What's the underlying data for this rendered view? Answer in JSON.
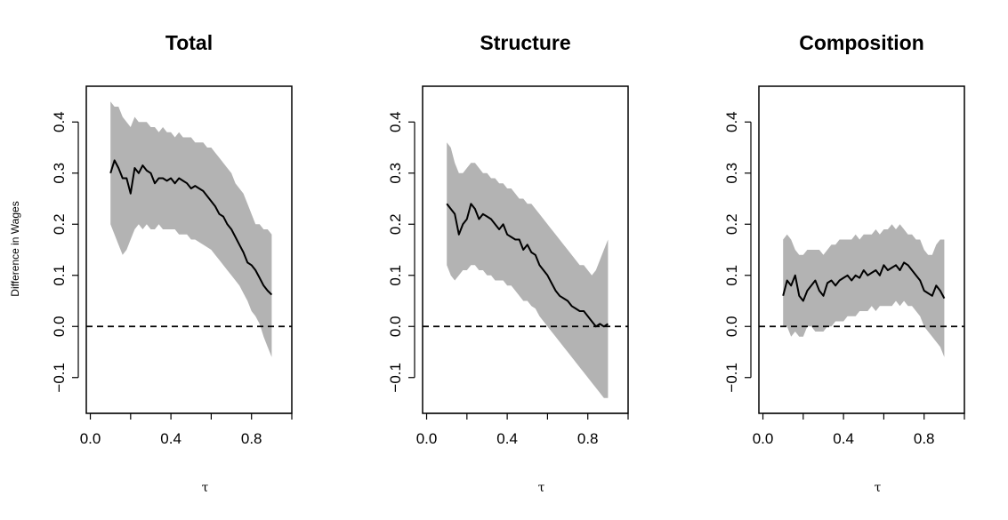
{
  "figure": {
    "ylabel": "Difference in Wages",
    "xlabel": "τ"
  },
  "chart_data": [
    {
      "type": "line",
      "title": "Total",
      "xlabel": "τ",
      "ylabel": "Difference in Wages",
      "xlim": [
        -0.02,
        1.0
      ],
      "ylim": [
        -0.17,
        0.47
      ],
      "xticks": [
        0.0,
        0.2,
        0.4,
        0.6,
        0.8,
        1.0
      ],
      "xtick_labels": [
        "0.0",
        "",
        "0.4",
        "",
        "0.8",
        ""
      ],
      "yticks": [
        -0.1,
        0.0,
        0.1,
        0.2,
        0.3,
        0.4
      ],
      "ytick_labels": [
        "−0.1",
        "0.0",
        "0.1",
        "0.2",
        "0.3",
        "0.4"
      ],
      "reference_line": 0.0,
      "band_color": "#b3b3b3",
      "line_color": "#000000",
      "series": [
        {
          "x": [
            0.1,
            0.12,
            0.14,
            0.16,
            0.18,
            0.2,
            0.22,
            0.24,
            0.26,
            0.28,
            0.3,
            0.32,
            0.34,
            0.36,
            0.38,
            0.4,
            0.42,
            0.44,
            0.46,
            0.48,
            0.5,
            0.52,
            0.54,
            0.56,
            0.58,
            0.6,
            0.62,
            0.64,
            0.66,
            0.68,
            0.7,
            0.72,
            0.74,
            0.76,
            0.78,
            0.8,
            0.82,
            0.84,
            0.86,
            0.88,
            0.9
          ],
          "y": [
            0.3,
            0.325,
            0.31,
            0.29,
            0.29,
            0.26,
            0.31,
            0.3,
            0.315,
            0.305,
            0.3,
            0.28,
            0.29,
            0.29,
            0.285,
            0.29,
            0.28,
            0.29,
            0.285,
            0.28,
            0.27,
            0.275,
            0.27,
            0.265,
            0.255,
            0.245,
            0.235,
            0.22,
            0.215,
            0.2,
            0.19,
            0.175,
            0.16,
            0.145,
            0.125,
            0.12,
            0.11,
            0.095,
            0.08,
            0.07,
            0.062
          ],
          "lower": [
            0.2,
            0.18,
            0.16,
            0.14,
            0.15,
            0.17,
            0.19,
            0.2,
            0.19,
            0.2,
            0.19,
            0.19,
            0.2,
            0.19,
            0.19,
            0.19,
            0.19,
            0.18,
            0.18,
            0.18,
            0.17,
            0.17,
            0.165,
            0.16,
            0.155,
            0.15,
            0.14,
            0.13,
            0.12,
            0.11,
            0.1,
            0.09,
            0.08,
            0.065,
            0.05,
            0.03,
            0.02,
            0.005,
            -0.02,
            -0.04,
            -0.06
          ],
          "upper": [
            0.44,
            0.43,
            0.43,
            0.41,
            0.4,
            0.39,
            0.41,
            0.4,
            0.4,
            0.4,
            0.39,
            0.39,
            0.38,
            0.39,
            0.38,
            0.38,
            0.37,
            0.38,
            0.37,
            0.37,
            0.37,
            0.36,
            0.36,
            0.36,
            0.35,
            0.35,
            0.34,
            0.33,
            0.32,
            0.31,
            0.3,
            0.28,
            0.27,
            0.26,
            0.24,
            0.22,
            0.2,
            0.2,
            0.19,
            0.19,
            0.18
          ]
        }
      ]
    },
    {
      "type": "line",
      "title": "Structure",
      "xlabel": "τ",
      "ylabel": "",
      "xlim": [
        -0.02,
        1.0
      ],
      "ylim": [
        -0.17,
        0.47
      ],
      "xticks": [
        0.0,
        0.2,
        0.4,
        0.6,
        0.8,
        1.0
      ],
      "xtick_labels": [
        "0.0",
        "",
        "0.4",
        "",
        "0.8",
        ""
      ],
      "yticks": [
        -0.1,
        0.0,
        0.1,
        0.2,
        0.3,
        0.4
      ],
      "ytick_labels": [
        "−0.1",
        "0.0",
        "0.1",
        "0.2",
        "0.3",
        "0.4"
      ],
      "reference_line": 0.0,
      "band_color": "#b3b3b3",
      "line_color": "#000000",
      "series": [
        {
          "x": [
            0.1,
            0.12,
            0.14,
            0.16,
            0.18,
            0.2,
            0.22,
            0.24,
            0.26,
            0.28,
            0.3,
            0.32,
            0.34,
            0.36,
            0.38,
            0.4,
            0.42,
            0.44,
            0.46,
            0.48,
            0.5,
            0.52,
            0.54,
            0.56,
            0.58,
            0.6,
            0.62,
            0.64,
            0.66,
            0.68,
            0.7,
            0.72,
            0.74,
            0.76,
            0.78,
            0.8,
            0.82,
            0.84,
            0.86,
            0.88,
            0.9
          ],
          "y": [
            0.24,
            0.23,
            0.22,
            0.18,
            0.2,
            0.21,
            0.24,
            0.23,
            0.21,
            0.22,
            0.215,
            0.21,
            0.2,
            0.19,
            0.2,
            0.18,
            0.175,
            0.17,
            0.17,
            0.15,
            0.16,
            0.145,
            0.14,
            0.12,
            0.11,
            0.1,
            0.085,
            0.07,
            0.06,
            0.055,
            0.05,
            0.04,
            0.035,
            0.03,
            0.03,
            0.02,
            0.01,
            0.0,
            0.005,
            0.0,
            0.005
          ],
          "lower": [
            0.12,
            0.1,
            0.09,
            0.1,
            0.11,
            0.11,
            0.12,
            0.12,
            0.11,
            0.11,
            0.1,
            0.1,
            0.09,
            0.09,
            0.09,
            0.08,
            0.08,
            0.07,
            0.06,
            0.05,
            0.05,
            0.04,
            0.035,
            0.02,
            0.01,
            0.0,
            -0.01,
            -0.02,
            -0.03,
            -0.04,
            -0.05,
            -0.06,
            -0.07,
            -0.08,
            -0.09,
            -0.1,
            -0.11,
            -0.12,
            -0.13,
            -0.14,
            -0.14
          ],
          "upper": [
            0.36,
            0.35,
            0.32,
            0.3,
            0.3,
            0.31,
            0.32,
            0.32,
            0.31,
            0.3,
            0.3,
            0.29,
            0.29,
            0.28,
            0.28,
            0.27,
            0.27,
            0.26,
            0.25,
            0.25,
            0.24,
            0.24,
            0.23,
            0.22,
            0.21,
            0.2,
            0.19,
            0.18,
            0.17,
            0.16,
            0.15,
            0.14,
            0.13,
            0.12,
            0.12,
            0.11,
            0.1,
            0.11,
            0.13,
            0.15,
            0.17
          ]
        }
      ]
    },
    {
      "type": "line",
      "title": "Composition",
      "xlabel": "τ",
      "ylabel": "",
      "xlim": [
        -0.02,
        1.0
      ],
      "ylim": [
        -0.17,
        0.47
      ],
      "xticks": [
        0.0,
        0.2,
        0.4,
        0.6,
        0.8,
        1.0
      ],
      "xtick_labels": [
        "0.0",
        "",
        "0.4",
        "",
        "0.8",
        ""
      ],
      "yticks": [
        -0.1,
        0.0,
        0.1,
        0.2,
        0.3,
        0.4
      ],
      "ytick_labels": [
        "−0.1",
        "0.0",
        "0.1",
        "0.2",
        "0.3",
        "0.4"
      ],
      "reference_line": 0.0,
      "band_color": "#b3b3b3",
      "line_color": "#000000",
      "series": [
        {
          "x": [
            0.1,
            0.12,
            0.14,
            0.16,
            0.18,
            0.2,
            0.22,
            0.24,
            0.26,
            0.28,
            0.3,
            0.32,
            0.34,
            0.36,
            0.38,
            0.4,
            0.42,
            0.44,
            0.46,
            0.48,
            0.5,
            0.52,
            0.54,
            0.56,
            0.58,
            0.6,
            0.62,
            0.64,
            0.66,
            0.68,
            0.7,
            0.72,
            0.74,
            0.76,
            0.78,
            0.8,
            0.82,
            0.84,
            0.86,
            0.88,
            0.9
          ],
          "y": [
            0.06,
            0.09,
            0.08,
            0.1,
            0.06,
            0.05,
            0.07,
            0.08,
            0.09,
            0.07,
            0.06,
            0.085,
            0.09,
            0.08,
            0.09,
            0.095,
            0.1,
            0.09,
            0.1,
            0.095,
            0.11,
            0.1,
            0.105,
            0.11,
            0.1,
            0.12,
            0.11,
            0.115,
            0.12,
            0.11,
            0.125,
            0.12,
            0.11,
            0.1,
            0.09,
            0.07,
            0.065,
            0.06,
            0.08,
            0.07,
            0.055
          ],
          "lower": [
            0.0,
            0.0,
            -0.02,
            -0.01,
            -0.02,
            -0.02,
            0.0,
            0.0,
            -0.01,
            -0.01,
            -0.01,
            0.0,
            0.0,
            0.01,
            0.01,
            0.01,
            0.02,
            0.02,
            0.02,
            0.03,
            0.03,
            0.03,
            0.04,
            0.03,
            0.04,
            0.04,
            0.04,
            0.04,
            0.05,
            0.04,
            0.05,
            0.04,
            0.04,
            0.03,
            0.02,
            0.0,
            -0.01,
            -0.02,
            -0.03,
            -0.04,
            -0.06
          ],
          "upper": [
            0.17,
            0.18,
            0.17,
            0.15,
            0.14,
            0.14,
            0.15,
            0.15,
            0.15,
            0.15,
            0.14,
            0.15,
            0.16,
            0.16,
            0.17,
            0.17,
            0.17,
            0.17,
            0.18,
            0.17,
            0.18,
            0.18,
            0.18,
            0.19,
            0.18,
            0.19,
            0.19,
            0.2,
            0.19,
            0.2,
            0.19,
            0.18,
            0.18,
            0.17,
            0.17,
            0.15,
            0.14,
            0.14,
            0.16,
            0.17,
            0.17
          ]
        }
      ]
    }
  ]
}
